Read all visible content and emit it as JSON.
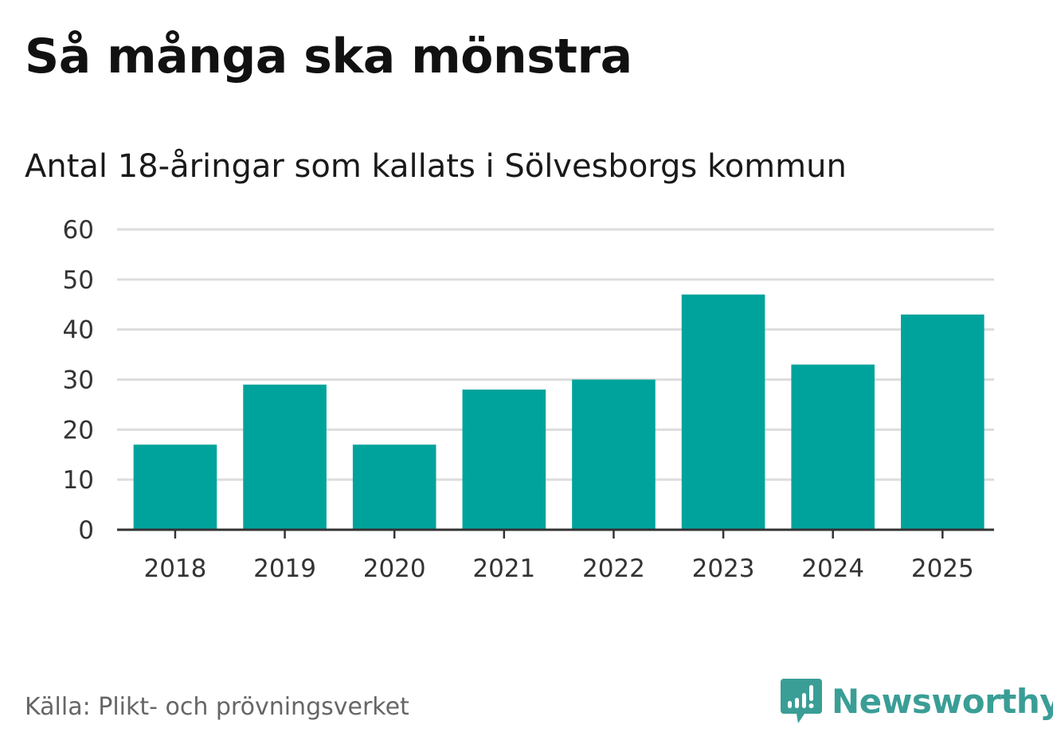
{
  "title": "Så många ska mönstra",
  "subtitle": "Antal 18-åringar som kallats i Sölvesborgs kommun",
  "source": "Källa: Plikt- och prövningsverket",
  "brand": {
    "name": "Newsworthy",
    "icon": "newsworthy-logo-icon",
    "color": "#3a9e96"
  },
  "colors": {
    "bar": "#00a39b",
    "grid": "#dddddd",
    "axis": "#333333",
    "text": "#333333"
  },
  "chart_data": {
    "type": "bar",
    "title": "Så många ska mönstra",
    "subtitle": "Antal 18-åringar som kallats i Sölvesborgs kommun",
    "categories": [
      "2018",
      "2019",
      "2020",
      "2021",
      "2022",
      "2023",
      "2024",
      "2025"
    ],
    "values": [
      17,
      29,
      17,
      28,
      30,
      47,
      33,
      43
    ],
    "yticks": [
      "0",
      "10",
      "20",
      "30",
      "40",
      "50",
      "60"
    ],
    "ylim": [
      0,
      60
    ],
    "xlabel": "",
    "ylabel": "",
    "grid": true,
    "legend": "none"
  }
}
